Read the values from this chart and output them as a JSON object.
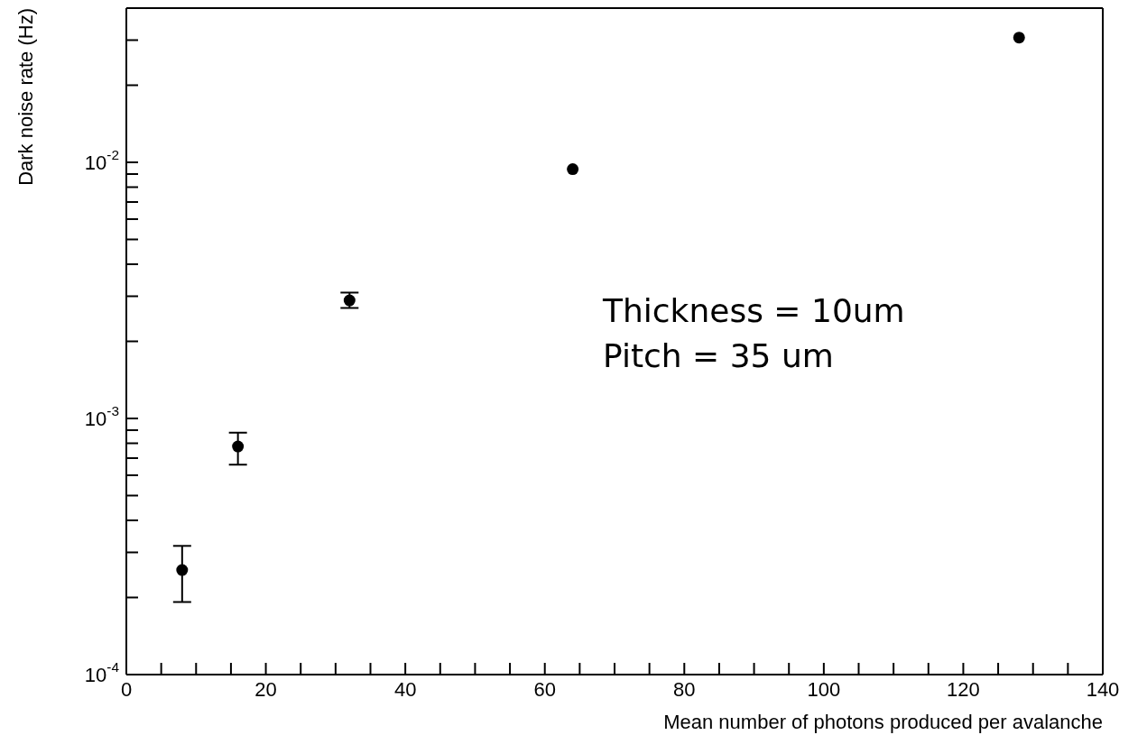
{
  "chart_data": {
    "type": "scatter",
    "xlabel": "Mean number of photons produced per avalanche",
    "ylabel": "Dark noise rate (Hz)",
    "x": [
      8,
      16,
      32,
      64,
      128
    ],
    "series": [
      {
        "color": "#000000",
        "values": [
          0.000256,
          0.000777,
          0.00289,
          0.0094,
          0.0307
        ],
        "errors": [
          [
            0.000192,
            0.000318
          ],
          [
            0.00066,
            0.00088
          ],
          [
            0.0027,
            0.0031
          ],
          null,
          null
        ]
      }
    ],
    "xlim": [
      0,
      140
    ],
    "xticks": [
      0,
      {
        "value": 5,
        "label": null
      },
      {
        "value": 10,
        "label": null
      },
      {
        "value": 15,
        "label": null
      },
      20,
      {
        "value": 25,
        "label": null
      },
      {
        "value": 30,
        "label": null
      },
      {
        "value": 35,
        "label": null
      },
      40,
      {
        "value": 45,
        "label": null
      },
      {
        "value": 50,
        "label": null
      },
      {
        "value": 55,
        "label": null
      },
      60,
      {
        "value": 65,
        "label": null
      },
      {
        "value": 70,
        "label": null
      },
      {
        "value": 75,
        "label": null
      },
      80,
      {
        "value": 85,
        "label": null
      },
      {
        "value": 90,
        "label": null
      },
      {
        "value": 95,
        "label": null
      },
      100,
      {
        "value": 105,
        "label": null
      },
      {
        "value": 110,
        "label": null
      },
      {
        "value": 115,
        "label": null
      },
      120,
      {
        "value": 125,
        "label": null
      },
      {
        "value": 130,
        "label": null
      },
      {
        "value": 135,
        "label": null
      },
      140
    ],
    "ylim": [
      0.0001,
      0.04
    ],
    "log": "y",
    "yticks": [
      {
        "value": 0.0001,
        "label": "10$^{-4}$"
      },
      {
        "value": 0.0002,
        "label": null
      },
      {
        "value": 0.0003,
        "label": null
      },
      {
        "value": 0.0004,
        "label": null
      },
      {
        "value": 0.0005,
        "label": null
      },
      {
        "value": 0.0006,
        "label": null
      },
      {
        "value": 0.0007,
        "label": null
      },
      {
        "value": 0.0008,
        "label": null
      },
      {
        "value": 0.0009,
        "label": null
      },
      {
        "value": 0.001,
        "label": "10$^{-3}$"
      },
      {
        "value": 0.002,
        "label": null
      },
      {
        "value": 0.003,
        "label": null
      },
      {
        "value": 0.004,
        "label": null
      },
      {
        "value": 0.005,
        "label": null
      },
      {
        "value": 0.006,
        "label": null
      },
      {
        "value": 0.007,
        "label": null
      },
      {
        "value": 0.008,
        "label": null
      },
      {
        "value": 0.009,
        "label": null
      },
      {
        "value": 0.01,
        "label": "10$^{-2}$"
      },
      {
        "value": 0.02,
        "label": null
      },
      {
        "value": 0.03,
        "label": null
      }
    ],
    "marker": "circle",
    "annotations": [
      "Thickness = 10um",
      "Pitch = 35 um"
    ]
  }
}
